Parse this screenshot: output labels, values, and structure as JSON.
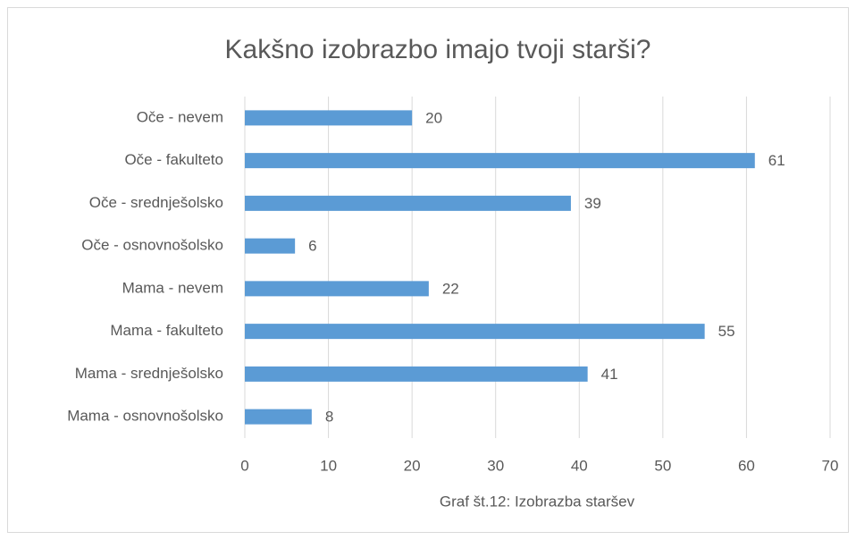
{
  "chart_data": {
    "type": "bar",
    "orientation": "horizontal",
    "title": "Kakšno izobrazbo imajo tvoji starši?",
    "x_label": "Graf št.12: Izobrazba staršev",
    "categories": [
      "Oče - nevem",
      "Oče - fakulteto",
      "Oče - srednješolsko",
      "Oče - osnovnošolsko",
      "Mama - nevem",
      "Mama - fakulteto",
      "Mama - srednješolsko",
      "Mama - osnovnošolsko"
    ],
    "values": [
      20,
      61,
      39,
      6,
      22,
      55,
      41,
      8
    ],
    "color": "#5b9bd5",
    "xlim": [
      0,
      70
    ],
    "xticks": [
      0,
      10,
      20,
      30,
      40,
      50,
      60,
      70
    ],
    "grid": true
  }
}
